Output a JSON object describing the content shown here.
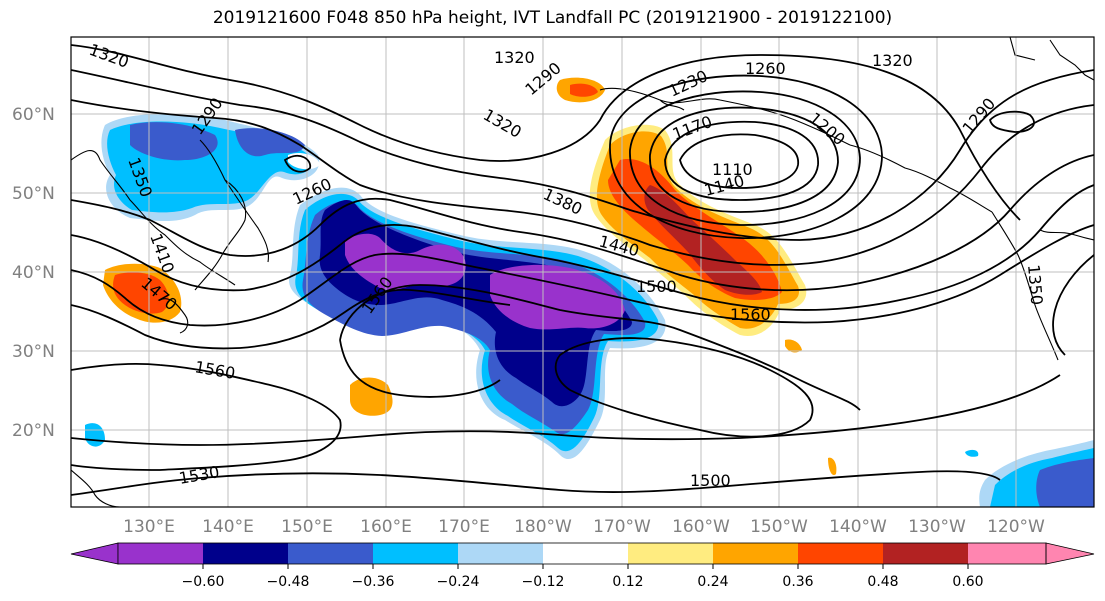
{
  "title": "2019121600 F048 850 hPa height, IVT Landfall PC (2019121900 - 2019122100)",
  "map": {
    "latitude_labels": [
      "60°N",
      "50°N",
      "40°N",
      "30°N",
      "20°N"
    ],
    "longitude_labels": [
      "130°E",
      "140°E",
      "150°E",
      "160°E",
      "170°E",
      "180°W",
      "170°W",
      "160°W",
      "150°W",
      "140°W",
      "130°W",
      "120°W"
    ],
    "height_contour_labels": [
      "1320",
      "1320",
      "1260",
      "1320",
      "1290",
      "1230",
      "1200",
      "1290",
      "1170",
      "1110",
      "1140",
      "1320",
      "1380",
      "1440",
      "1500",
      "1560",
      "1290",
      "1350",
      "1410",
      "1470",
      "1260",
      "1560",
      "1560",
      "1530",
      "1500",
      "1350"
    ],
    "fill_colors": {
      "neg_060": "#9932cc",
      "neg_048": "#00008b",
      "neg_036": "#3a5bcc",
      "neg_024": "#00bfff",
      "neg_012": "#add8f6",
      "neutral": "#ffffff",
      "pos_012": "#ffec80",
      "pos_024": "#ffa500",
      "pos_036": "#ff4500",
      "pos_048": "#b22222",
      "pos_060": "#ff85b0"
    }
  },
  "colorbar": {
    "ticks": [
      "−0.60",
      "−0.48",
      "−0.36",
      "−0.24",
      "−0.12",
      "0.12",
      "0.24",
      "0.36",
      "0.48",
      "0.60"
    ],
    "colors": [
      "#9932cc",
      "#00008b",
      "#3a5bcc",
      "#00bfff",
      "#add8f6",
      "#ffffff",
      "#ffec80",
      "#ffa500",
      "#ff4500",
      "#b22222",
      "#ff85b0"
    ]
  }
}
